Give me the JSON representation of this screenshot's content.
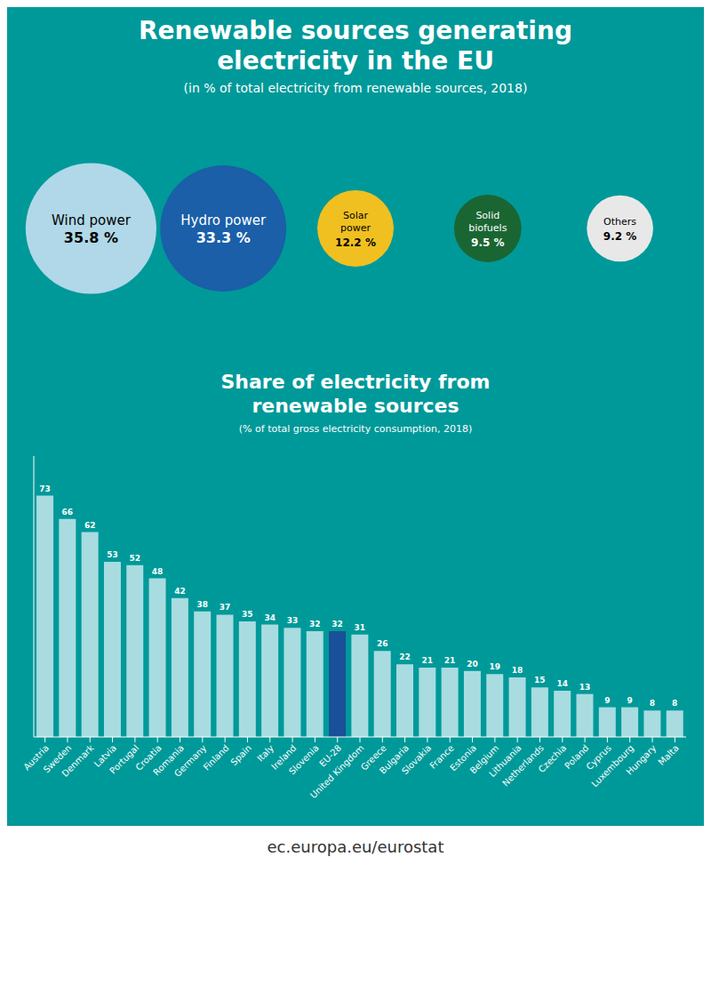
{
  "chart_data": [
    {
      "type": "bubble",
      "title": "Renewable sources generating\nelectricity in the EU",
      "subtitle": "(in % of total electricity from renewable sources, 2018)",
      "categories": [
        "Wind power",
        "Hydro power",
        "Solar\npower",
        "Solid\nbiofuels",
        "Others"
      ],
      "values": [
        35.8,
        33.3,
        12.2,
        9.5,
        9.2
      ],
      "value_labels": [
        "35.8 %",
        "33.3 %",
        "12.2 %",
        "9.5 %",
        "9.2 %"
      ],
      "colors": [
        "#b0d8e8",
        "#1a5fa8",
        "#f0c020",
        "#1a6633",
        "#e8e8e8"
      ],
      "data_labels": true,
      "tick_labels": false
    },
    {
      "type": "bar",
      "title": "Share of electricity from\nrenewable sources",
      "subtitle": "(% of total gross electricity consumption, 2018)",
      "categories": [
        "Austria",
        "Sweden",
        "Denmark",
        "Latvia",
        "Portugal",
        "Croatia",
        "Romania",
        "Germany",
        "Finland",
        "Spain",
        "Italy",
        "Ireland",
        "Slovenia",
        "EU-28",
        "United Kingdom",
        "Greece",
        "Bulgaria",
        "Slovakia",
        "France",
        "Estonia",
        "Belgium",
        "Lithuania",
        "Netherlands",
        "Czechia",
        "Poland",
        "Cyprus",
        "Luxembourg",
        "Hungary",
        "Malta"
      ],
      "values": [
        73,
        66,
        62,
        53,
        52,
        48,
        42,
        38,
        37,
        35,
        34,
        33,
        32,
        32,
        31,
        26,
        22,
        21,
        21,
        20,
        19,
        18,
        15,
        14,
        13,
        9,
        9,
        8,
        8
      ],
      "colors": [
        "#a8dce0",
        "#a8dce0",
        "#a8dce0",
        "#a8dce0",
        "#a8dce0",
        "#a8dce0",
        "#a8dce0",
        "#a8dce0",
        "#a8dce0",
        "#a8dce0",
        "#a8dce0",
        "#a8dce0",
        "#a8dce0",
        "#1a4f99",
        "#a8dce0",
        "#a8dce0",
        "#a8dce0",
        "#a8dce0",
        "#a8dce0",
        "#a8dce0",
        "#a8dce0",
        "#a8dce0",
        "#a8dce0",
        "#a8dce0",
        "#a8dce0",
        "#a8dce0",
        "#a8dce0",
        "#a8dce0",
        "#a8dce0"
      ],
      "ylim": [
        0,
        85
      ],
      "data_labels": true,
      "tick_labels": "x",
      "grid": false,
      "annotations": [
        "ec.europa.eu/eurostat"
      ]
    }
  ]
}
